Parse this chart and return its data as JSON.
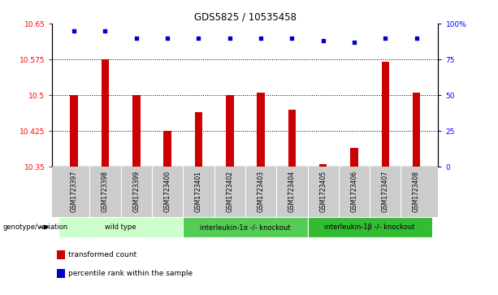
{
  "title": "GDS5825 / 10535458",
  "samples": [
    "GSM1723397",
    "GSM1723398",
    "GSM1723399",
    "GSM1723400",
    "GSM1723401",
    "GSM1723402",
    "GSM1723403",
    "GSM1723404",
    "GSM1723405",
    "GSM1723406",
    "GSM1723407",
    "GSM1723408"
  ],
  "bar_values": [
    10.5,
    10.575,
    10.5,
    10.425,
    10.465,
    10.5,
    10.505,
    10.47,
    10.355,
    10.39,
    10.57,
    10.505
  ],
  "percentile_values": [
    95,
    95,
    90,
    90,
    90,
    90,
    90,
    90,
    88,
    87,
    90,
    90
  ],
  "ylim_left": [
    10.35,
    10.65
  ],
  "ylim_right": [
    0,
    100
  ],
  "yticks_left": [
    10.35,
    10.425,
    10.5,
    10.575,
    10.65
  ],
  "yticks_right": [
    0,
    25,
    50,
    75,
    100
  ],
  "ytick_labels_left": [
    "10.35",
    "10.425",
    "10.5",
    "10.575",
    "10.65"
  ],
  "ytick_labels_right": [
    "0",
    "25",
    "50",
    "75",
    "100%"
  ],
  "grid_values": [
    10.425,
    10.5,
    10.575
  ],
  "bar_color": "#cc0000",
  "dot_color": "#0000cc",
  "bar_bottom": 10.35,
  "bar_width": 0.25,
  "groups": [
    {
      "label": "wild type",
      "start": 0,
      "end": 3,
      "color": "#ccffcc"
    },
    {
      "label": "interleukin-1α -/- knockout",
      "start": 4,
      "end": 7,
      "color": "#55cc55"
    },
    {
      "label": "interleukin-1β -/- knockout",
      "start": 8,
      "end": 11,
      "color": "#33bb33"
    }
  ],
  "genotype_label": "genotype/variation",
  "legend_items": [
    {
      "label": "transformed count",
      "color": "#cc0000"
    },
    {
      "label": "percentile rank within the sample",
      "color": "#0000cc"
    }
  ],
  "background_color": "#ffffff",
  "plot_bg_color": "#ffffff"
}
